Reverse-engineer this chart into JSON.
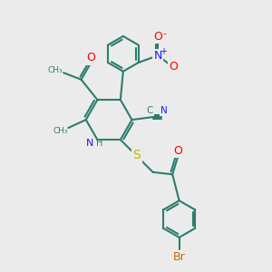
{
  "bg_color": "#ebebeb",
  "bond_color": "#2d7d6e",
  "bond_width": 1.5,
  "colors": {
    "C": "#2d7d6e",
    "N": "#1a1aff",
    "O": "#ff0000",
    "S": "#b8b800",
    "Br": "#cc6600"
  },
  "figsize": [
    3.0,
    3.0
  ],
  "dpi": 100,
  "xlim": [
    0,
    10
  ],
  "ylim": [
    0,
    10
  ]
}
